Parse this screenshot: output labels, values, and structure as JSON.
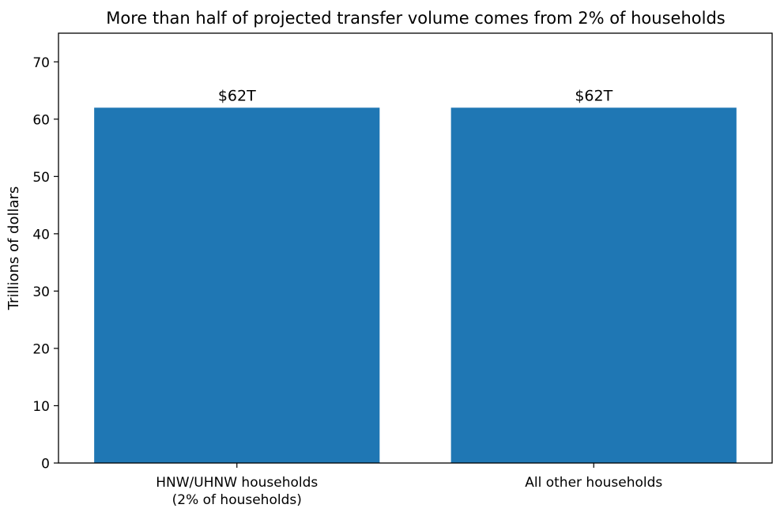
{
  "chart_data": {
    "type": "bar",
    "title": "More than half of projected transfer volume comes from 2% of households",
    "xlabel": "",
    "ylabel": "Trillions of dollars",
    "categories": [
      [
        "HNW/UHNW households",
        "(2% of households)"
      ],
      [
        "All other households"
      ]
    ],
    "values": [
      62,
      62
    ],
    "data_labels": [
      "$62T",
      "$62T"
    ],
    "ylim": [
      0,
      75
    ],
    "yticks": [
      0,
      10,
      20,
      30,
      40,
      50,
      60,
      70
    ],
    "grid": false,
    "legend": "none",
    "bar_color": "#1f77b4"
  }
}
